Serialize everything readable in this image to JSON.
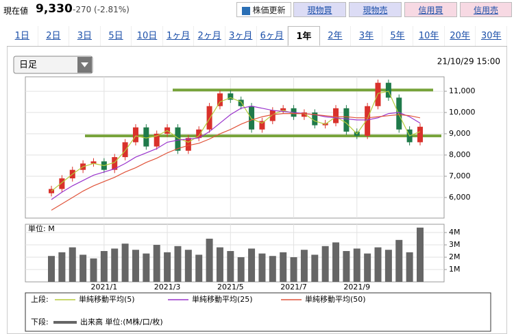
{
  "header": {
    "label": "現在値",
    "price": "9,330",
    "change": "-270 (-2.81%)",
    "buttons": [
      "株価更新",
      "現物買",
      "現物売",
      "信用買",
      "信用売"
    ]
  },
  "tabs": [
    "1日",
    "2日",
    "3日",
    "5日",
    "10日",
    "1ヶ月",
    "2ヶ月",
    "3ヶ月",
    "6ヶ月",
    "1年",
    "2年",
    "3年",
    "5年",
    "10年",
    "20年",
    "30年"
  ],
  "active_tab": "1年",
  "dropdown": "日足",
  "timestamp": "21/10/29 15:00",
  "legend_labels": {
    "upper": "上段:",
    "lower": "下段:"
  },
  "chart_data": [
    {
      "type": "candlestick",
      "open": [
        6200,
        6400,
        6900,
        7300,
        7600,
        7700,
        7300,
        7900,
        8600,
        9300,
        8400,
        9000,
        9300,
        8200,
        8800,
        9200,
        10300,
        10900,
        10600,
        10300,
        9200,
        9600,
        10100,
        10200,
        9800,
        10000,
        9400,
        9500,
        10200,
        9100,
        8900,
        10300,
        11400,
        10700,
        9200,
        8600
      ],
      "high": [
        6550,
        7050,
        7450,
        7750,
        7850,
        7850,
        8050,
        8750,
        9450,
        9450,
        9150,
        9450,
        9450,
        8950,
        9350,
        10450,
        11050,
        11050,
        10750,
        10450,
        9750,
        10250,
        10350,
        10350,
        10150,
        10150,
        9650,
        10350,
        10350,
        9250,
        10450,
        11550,
        11550,
        10850,
        9350,
        9480
      ],
      "low": [
        6050,
        6250,
        6750,
        7150,
        7450,
        7150,
        7150,
        7750,
        8450,
        8250,
        8250,
        8850,
        8050,
        8050,
        8650,
        9050,
        10150,
        10450,
        10150,
        9050,
        9050,
        9450,
        9950,
        9650,
        9650,
        9250,
        9250,
        9350,
        8950,
        8750,
        8750,
        10150,
        10550,
        9050,
        8450,
        8450
      ],
      "close": [
        6400,
        6900,
        7300,
        7600,
        7700,
        7300,
        7900,
        8600,
        9300,
        8400,
        9000,
        9300,
        8200,
        8800,
        9200,
        10300,
        10900,
        10600,
        10300,
        9200,
        9600,
        10100,
        10200,
        9800,
        10000,
        9400,
        9500,
        10200,
        9100,
        8900,
        10300,
        11400,
        10700,
        9200,
        8600,
        9330
      ],
      "up_color": "#d9312b",
      "down_color": "#1f7a4a",
      "series": [
        {
          "name": "単純移動平均(5)",
          "color": "#b5cc3a",
          "values": [
            6300,
            6700,
            7100,
            7450,
            7600,
            7500,
            7650,
            8200,
            8900,
            8800,
            8900,
            9150,
            8800,
            8600,
            8900,
            9700,
            10500,
            10700,
            10500,
            9700,
            9500,
            9900,
            10100,
            9950,
            9950,
            9600,
            9450,
            9800,
            9500,
            9000,
            9700,
            10900,
            11000,
            9900,
            8900,
            9100
          ]
        },
        {
          "name": "単純移動平均(25)",
          "color": "#9933cc",
          "values": [
            5900,
            6250,
            6550,
            6800,
            7050,
            7200,
            7350,
            7600,
            7900,
            8100,
            8300,
            8600,
            8700,
            8750,
            8800,
            9100,
            9500,
            9900,
            10200,
            10300,
            10200,
            10100,
            10050,
            10000,
            9950,
            9900,
            9800,
            9750,
            9700,
            9650,
            9650,
            9750,
            9950,
            10000,
            9800,
            9500
          ]
        },
        {
          "name": "単純移動平均(50)",
          "color": "#e0533a",
          "values": [
            5400,
            5700,
            6000,
            6300,
            6550,
            6750,
            6950,
            7200,
            7400,
            7650,
            7850,
            8100,
            8300,
            8450,
            8550,
            8750,
            9000,
            9200,
            9450,
            9650,
            9800,
            9900,
            9950,
            9950,
            9950,
            9900,
            9850,
            9800,
            9800,
            9750,
            9750,
            9800,
            9850,
            9900,
            9850,
            9750
          ]
        }
      ],
      "hlines": [
        11060,
        8900
      ],
      "hline_color": "#77a33a",
      "ylim": [
        5030,
        11680
      ],
      "yticks": [
        {
          "value": 11000,
          "label": "11,000"
        },
        {
          "value": 10000,
          "label": "10,000"
        },
        {
          "value": 9000,
          "label": "9,000"
        },
        {
          "value": 8000,
          "label": "8,000"
        },
        {
          "value": 7000,
          "label": "7,000"
        },
        {
          "value": 6000,
          "label": "6,000"
        }
      ],
      "grid": true
    },
    {
      "type": "bar",
      "y_label": "単位: M",
      "categories": [
        null,
        null,
        null,
        null,
        null,
        "2021/1",
        null,
        null,
        null,
        null,
        null,
        "2021/3",
        null,
        null,
        null,
        null,
        null,
        "2021/5",
        null,
        null,
        null,
        null,
        null,
        "2021/7",
        null,
        null,
        null,
        null,
        null,
        "2021/9",
        null,
        null,
        null,
        null,
        null,
        null
      ],
      "series": [
        {
          "name": "出来高 単位:(M株/口/枚)",
          "color": "#666666",
          "values": [
            2.1,
            2.4,
            2.8,
            2.2,
            1.9,
            2.5,
            2.7,
            3.1,
            2.6,
            2.3,
            3.0,
            2.4,
            2.9,
            2.6,
            2.2,
            3.5,
            2.8,
            2.5,
            2.0,
            2.7,
            2.3,
            2.1,
            2.4,
            2.0,
            2.6,
            2.2,
            2.9,
            3.2,
            2.5,
            2.7,
            2.3,
            2.8,
            2.6,
            3.4,
            2.4,
            4.4
          ]
        }
      ],
      "ylim": [
        0,
        4.67
      ],
      "yticks": [
        {
          "value": 4,
          "label": "4M"
        },
        {
          "value": 3,
          "label": "3M"
        },
        {
          "value": 2,
          "label": "2M"
        },
        {
          "value": 1,
          "label": "1M"
        }
      ],
      "grid": true
    }
  ]
}
